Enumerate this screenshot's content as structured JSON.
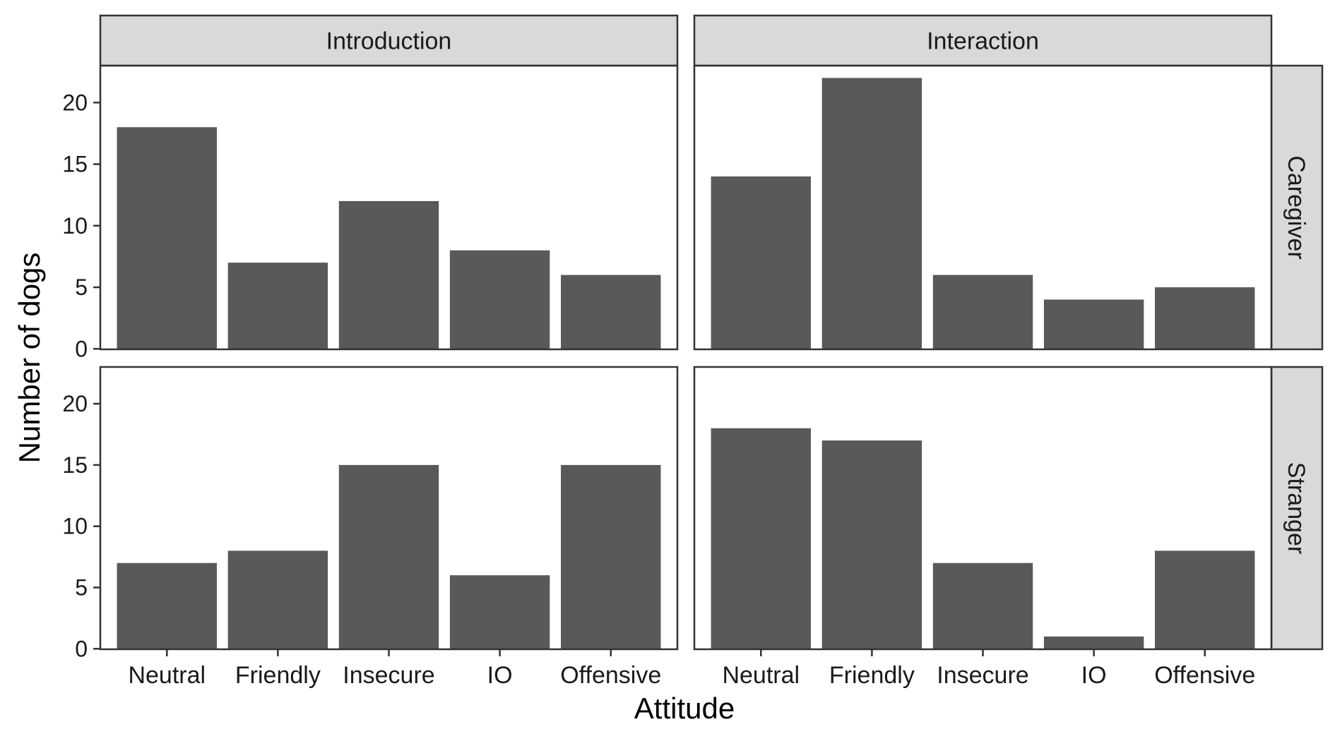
{
  "chart_data": {
    "type": "bar",
    "xlabel": "Attitude",
    "ylabel": "Number of dogs",
    "ylim": [
      0,
      23
    ],
    "yticks": [
      0,
      5,
      10,
      15,
      20
    ],
    "categories": [
      "Neutral",
      "Friendly",
      "Insecure",
      "IO",
      "Offensive"
    ],
    "columns": [
      "Introduction",
      "Interaction"
    ],
    "rows": [
      "Caregiver",
      "Stranger"
    ],
    "grid": false,
    "bar_color": "#595959",
    "strip_color": "#d9d9d9",
    "panels": [
      {
        "column": "Introduction",
        "row": "Caregiver",
        "values": [
          18,
          7,
          12,
          8,
          6
        ]
      },
      {
        "column": "Interaction",
        "row": "Caregiver",
        "values": [
          14,
          22,
          6,
          4,
          5
        ]
      },
      {
        "column": "Introduction",
        "row": "Stranger",
        "values": [
          7,
          8,
          15,
          6,
          15
        ]
      },
      {
        "column": "Interaction",
        "row": "Stranger",
        "values": [
          18,
          17,
          7,
          1,
          8
        ]
      }
    ]
  }
}
